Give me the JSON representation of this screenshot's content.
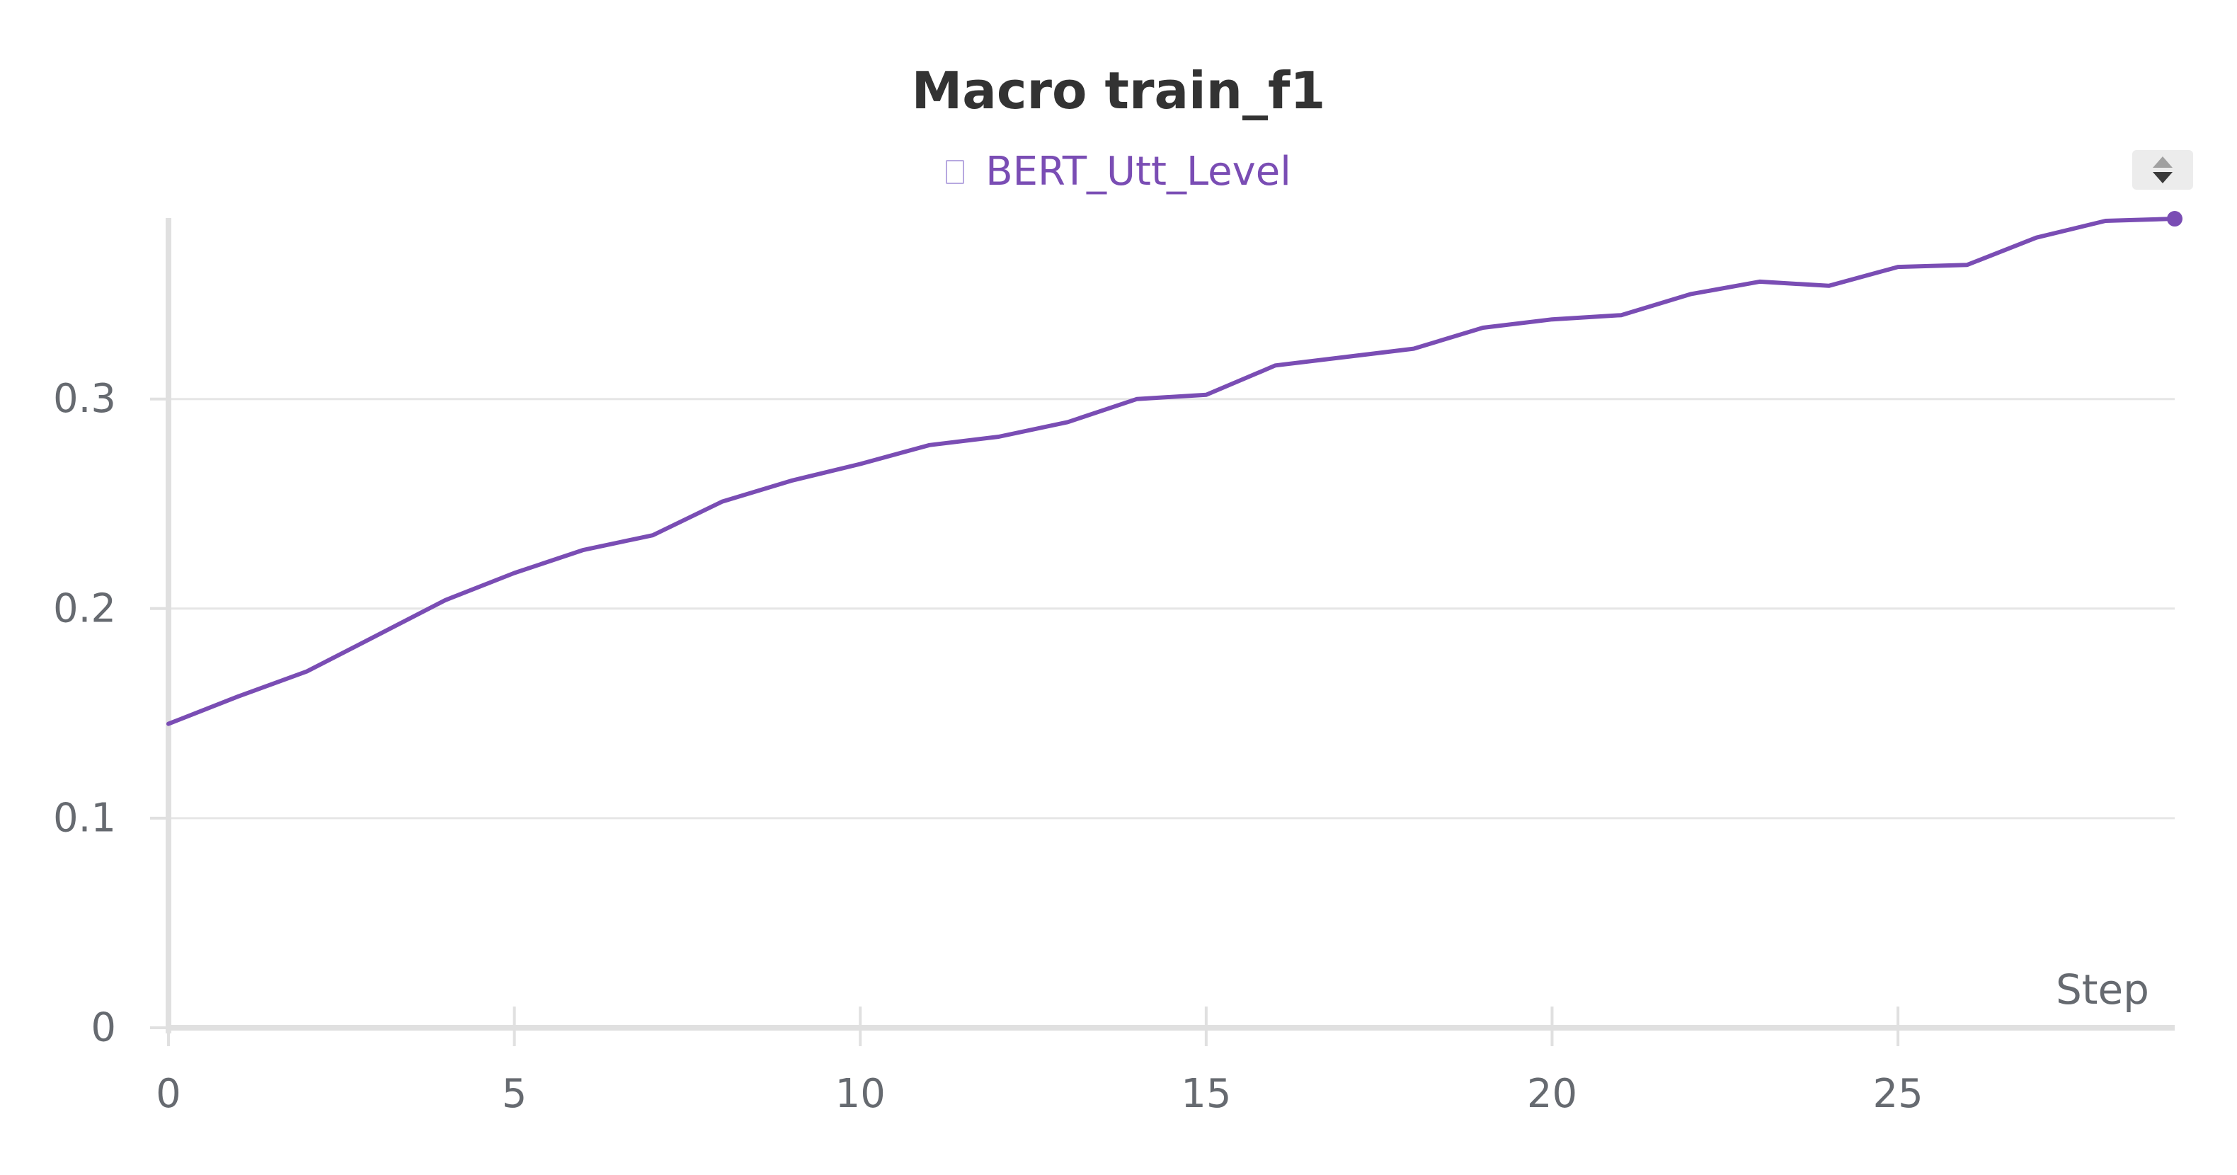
{
  "chart_data": {
    "type": "line",
    "title": "Macro train_f1",
    "xlabel": "Step",
    "ylabel": "",
    "xlim": [
      0,
      29
    ],
    "ylim": [
      0,
      0.385
    ],
    "xticks": [
      0,
      5,
      10,
      15,
      20,
      25
    ],
    "yticks": [
      0,
      0.1,
      0.2,
      0.3
    ],
    "ytick_labels": [
      "0",
      "0.1",
      "0.2",
      "0.3"
    ],
    "grid": true,
    "legend_position": "top-center",
    "series": [
      {
        "name": "BERT_Utt_Level",
        "color": "#7a4db4",
        "x": [
          0,
          1,
          2,
          3,
          4,
          5,
          6,
          7,
          8,
          9,
          10,
          11,
          12,
          13,
          14,
          15,
          16,
          17,
          18,
          19,
          20,
          21,
          22,
          23,
          24,
          25,
          26,
          27,
          28,
          29
        ],
        "values": [
          0.145,
          0.158,
          0.17,
          0.187,
          0.204,
          0.217,
          0.228,
          0.235,
          0.251,
          0.261,
          0.269,
          0.278,
          0.282,
          0.289,
          0.3,
          0.302,
          0.316,
          0.32,
          0.324,
          0.334,
          0.338,
          0.34,
          0.35,
          0.356,
          0.354,
          0.363,
          0.364,
          0.377,
          0.385,
          0.386
        ]
      }
    ]
  },
  "legend": {
    "swatch_icon": "square-outline-icon"
  },
  "controls": {
    "scroll_icon": "legend-scroll-arrows-icon"
  }
}
